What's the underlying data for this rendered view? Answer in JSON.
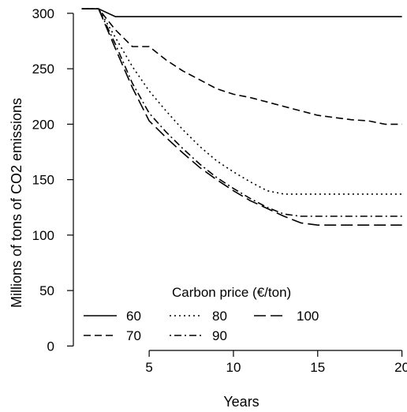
{
  "chart_data": {
    "type": "line",
    "title": "",
    "xlabel": "Years",
    "ylabel": "Millions of tons of CO2 emissions",
    "xlim": [
      0.5,
      20.3
    ],
    "ylim": [
      -4,
      307
    ],
    "xticks": [
      5,
      10,
      15,
      20
    ],
    "yticks": [
      0,
      50,
      100,
      150,
      200,
      250,
      300
    ],
    "grid": false,
    "legend": {
      "title": "Carbon price (€/ton)",
      "placement": "bottom-left"
    },
    "series": [
      {
        "name": "60",
        "dash": "solid",
        "x": [
          1,
          2,
          3,
          4,
          5,
          6,
          7,
          8,
          9,
          10,
          11,
          12,
          13,
          14,
          15,
          16,
          17,
          18,
          19,
          20
        ],
        "y": [
          304,
          304,
          297,
          297,
          297,
          297,
          297,
          297,
          297,
          297,
          297,
          297,
          297,
          297,
          297,
          297,
          297,
          297,
          297,
          297
        ]
      },
      {
        "name": "70",
        "dash": "dashed",
        "x": [
          1,
          2,
          3,
          4,
          5,
          6,
          7,
          8,
          9,
          10,
          11,
          12,
          13,
          14,
          15,
          16,
          17,
          18,
          19,
          20
        ],
        "y": [
          304,
          304,
          285,
          270,
          270,
          258,
          248,
          240,
          232,
          227,
          224,
          220,
          216,
          212,
          208,
          206,
          204,
          203,
          200,
          200
        ]
      },
      {
        "name": "80",
        "dash": "dotted",
        "x": [
          1,
          2,
          3,
          4,
          5,
          6,
          7,
          8,
          9,
          10,
          11,
          12,
          13,
          14,
          15,
          16,
          17,
          18,
          19,
          20
        ],
        "y": [
          304,
          304,
          278,
          252,
          230,
          212,
          195,
          180,
          167,
          157,
          148,
          140,
          137,
          137,
          137,
          137,
          137,
          137,
          137,
          137
        ]
      },
      {
        "name": "90",
        "dash": "dashdot",
        "x": [
          1,
          2,
          3,
          4,
          5,
          6,
          7,
          8,
          9,
          10,
          11,
          12,
          13,
          14,
          15,
          16,
          17,
          18,
          19,
          20
        ],
        "y": [
          304,
          304,
          272,
          237,
          210,
          193,
          178,
          164,
          152,
          142,
          133,
          125,
          119,
          117,
          117,
          117,
          117,
          117,
          117,
          117
        ]
      },
      {
        "name": "100",
        "dash": "longdash",
        "x": [
          1,
          2,
          3,
          4,
          5,
          6,
          7,
          8,
          9,
          10,
          11,
          12,
          13,
          14,
          15,
          16,
          17,
          18,
          19,
          20
        ],
        "y": [
          304,
          304,
          268,
          233,
          203,
          188,
          174,
          161,
          150,
          140,
          131,
          124,
          117,
          111,
          109,
          109,
          109,
          109,
          109,
          109
        ]
      }
    ]
  },
  "colors": {
    "line": "#000000",
    "axis": "#000000",
    "background": "#ffffff"
  }
}
